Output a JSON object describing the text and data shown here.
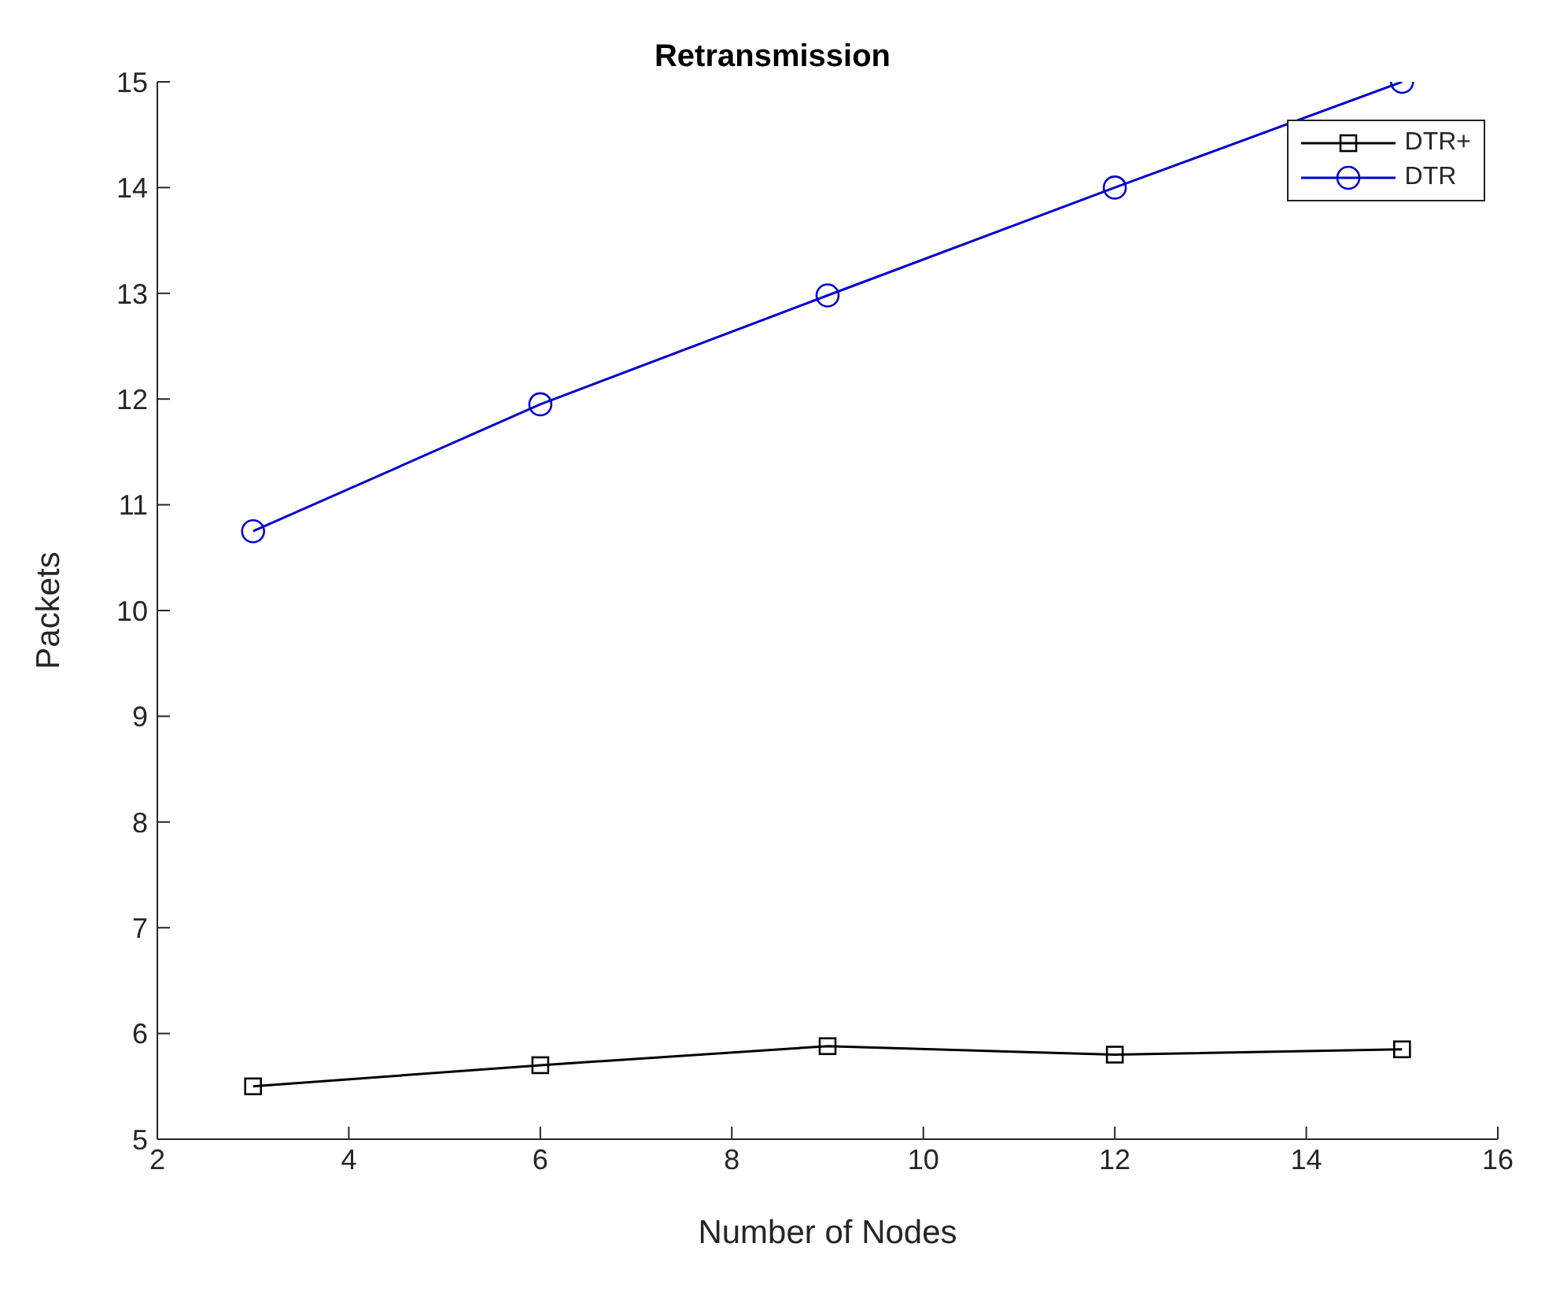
{
  "chart_data": {
    "type": "line",
    "title": "Retransmission",
    "xlabel": "Number of Nodes",
    "ylabel": "Packets",
    "x": [
      3,
      6,
      9,
      12,
      15
    ],
    "series": [
      {
        "name": "DTR+",
        "color": "#000000",
        "marker": "square",
        "values": [
          5.5,
          5.7,
          5.88,
          5.8,
          5.85
        ]
      },
      {
        "name": "DTR",
        "color": "#0000cc",
        "marker": "circle",
        "values": [
          10.75,
          11.95,
          12.98,
          14.0,
          15.0
        ]
      }
    ],
    "xlim": [
      2,
      16
    ],
    "xticks": [
      2,
      4,
      6,
      8,
      10,
      12,
      14,
      16
    ],
    "ylim": [
      5,
      15
    ],
    "yticks": [
      5,
      6,
      7,
      8,
      9,
      10,
      11,
      12,
      13,
      14,
      15
    ],
    "grid": false,
    "legend": "top right",
    "line_style": "solid"
  }
}
